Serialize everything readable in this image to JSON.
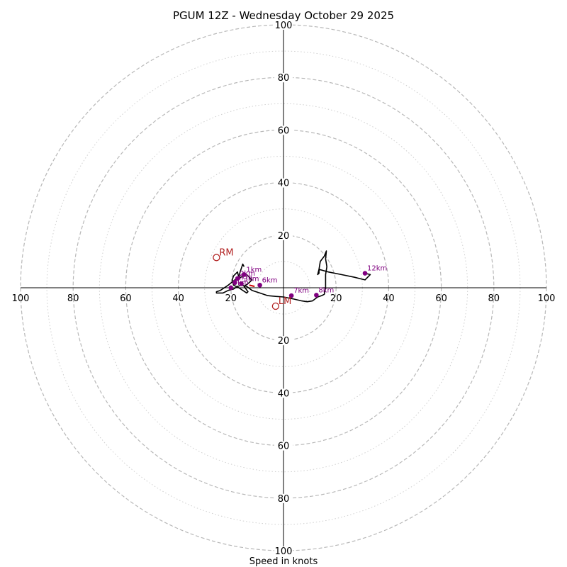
{
  "chart_data": {
    "type": "hodograph",
    "title": "PGUM 12Z - Wednesday October 29 2025",
    "xlabel": "Speed in knots",
    "speed_range": [
      0,
      100
    ],
    "major_rings": [
      20,
      40,
      60,
      80,
      100
    ],
    "minor_rings": [
      10,
      30,
      50,
      70,
      90
    ],
    "axis_tick_labels": [
      "20",
      "40",
      "60",
      "80",
      "100"
    ],
    "hodograph_trace": {
      "color": "#000000",
      "points": [
        [
          -15,
          8
        ],
        [
          -15.5,
          9
        ],
        [
          -16.5,
          6
        ],
        [
          -17,
          4
        ],
        [
          -17.5,
          6
        ],
        [
          -19,
          4.5
        ],
        [
          -19.5,
          3
        ],
        [
          -19,
          1
        ],
        [
          -17,
          0
        ],
        [
          -14,
          -2
        ],
        [
          -13.5,
          -1.5
        ],
        [
          -15,
          0.5
        ],
        [
          -13,
          2
        ],
        [
          -12,
          3
        ],
        [
          -14,
          5
        ],
        [
          -18.5,
          3
        ],
        [
          -21,
          1
        ],
        [
          -24,
          -1
        ],
        [
          -25.5,
          -1.5
        ],
        [
          -25.5,
          -2
        ],
        [
          -23,
          -2
        ],
        [
          -21,
          -1
        ],
        [
          -19,
          -0.5
        ],
        [
          -17.5,
          0.5
        ],
        [
          -16,
          1
        ],
        [
          -14,
          0.5
        ],
        [
          -12,
          -1
        ],
        [
          -9,
          -2
        ],
        [
          -6,
          -3
        ],
        [
          -3,
          -3.3
        ],
        [
          0,
          -3.5
        ],
        [
          4,
          -4.3
        ],
        [
          7,
          -5
        ],
        [
          9,
          -5.3
        ],
        [
          11,
          -5
        ],
        [
          13,
          -3.5
        ],
        [
          14.5,
          -3
        ],
        [
          15.5,
          -2.5
        ],
        [
          16,
          0
        ],
        [
          16,
          5
        ],
        [
          16.5,
          8
        ],
        [
          16,
          11
        ],
        [
          16.3,
          14
        ],
        [
          15.5,
          12
        ],
        [
          14,
          10
        ],
        [
          13.5,
          7
        ],
        [
          13,
          5
        ],
        [
          13.5,
          5.5
        ],
        [
          13.5,
          7
        ],
        [
          17,
          6
        ],
        [
          22,
          5
        ],
        [
          27,
          4
        ],
        [
          31,
          3
        ],
        [
          33,
          5
        ],
        [
          31,
          5.5
        ]
      ]
    },
    "height_markers": [
      {
        "label": "1km",
        "u": -15,
        "v": 5
      },
      {
        "label": "2km",
        "u": -17.5,
        "v": 3.5
      },
      {
        "label": "3km",
        "u": -16,
        "v": 1.5
      },
      {
        "label": "4km",
        "u": -18.5,
        "v": 2
      },
      {
        "label": "5km",
        "u": -20,
        "v": 0
      },
      {
        "label": "6km",
        "u": -9,
        "v": 1
      },
      {
        "label": "7km",
        "u": 3,
        "v": -3
      },
      {
        "label": "8km",
        "u": 12.5,
        "v": -2.8
      },
      {
        "label": "12km",
        "u": 31,
        "v": 5.5
      }
    ],
    "height_label_color": "#800080",
    "storm_motions": [
      {
        "label": "RM",
        "u": -25.5,
        "v": 11.5
      },
      {
        "label": "LM",
        "u": -3,
        "v": -7
      }
    ],
    "storm_motion_color": "#b22222",
    "mean_wind_segment": {
      "from": [
        -11,
        0.5
      ],
      "to": [
        -13,
        1
      ],
      "color": "#cc0000"
    }
  }
}
